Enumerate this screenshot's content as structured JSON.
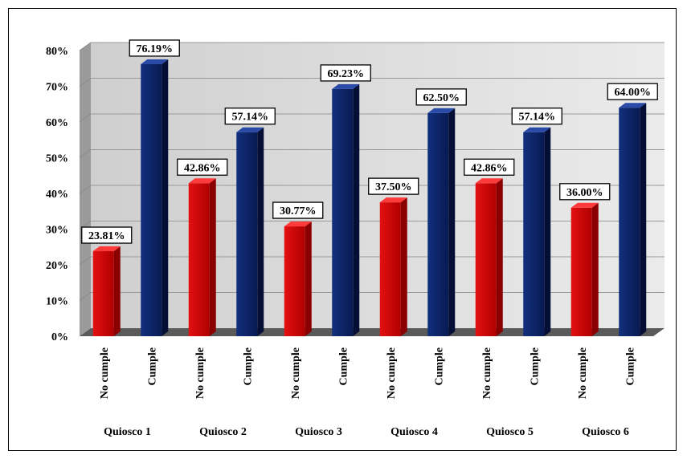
{
  "chart_data": {
    "type": "bar",
    "title": "",
    "xlabel": "",
    "ylabel": "",
    "ylim": [
      0,
      80
    ],
    "y_ticks": [
      "0%",
      "10%",
      "20%",
      "30%",
      "40%",
      "50%",
      "60%",
      "70%",
      "80%"
    ],
    "grid": true,
    "legend": "none",
    "style": "3d",
    "groups": [
      "Quiosco 1",
      "Quiosco 2",
      "Quiosco 3",
      "Quiosco 4",
      "Quiosco 5",
      "Quiosco 6"
    ],
    "bars": [
      {
        "group": "Quiosco 1",
        "category": "No cumple",
        "value": 23.81,
        "label": "23.81%",
        "color": "#cc0000"
      },
      {
        "group": "Quiosco 1",
        "category": "Cumple",
        "value": 76.19,
        "label": "76.19%",
        "color": "#0c2266"
      },
      {
        "group": "Quiosco 2",
        "category": "No cumple",
        "value": 42.86,
        "label": "42.86%",
        "color": "#cc0000"
      },
      {
        "group": "Quiosco 2",
        "category": "Cumple",
        "value": 57.14,
        "label": "57.14%",
        "color": "#0c2266"
      },
      {
        "group": "Quiosco 3",
        "category": "No cumple",
        "value": 30.77,
        "label": "30.77%",
        "color": "#cc0000"
      },
      {
        "group": "Quiosco 3",
        "category": "Cumple",
        "value": 69.23,
        "label": "69.23%",
        "color": "#0c2266"
      },
      {
        "group": "Quiosco 4",
        "category": "No cumple",
        "value": 37.5,
        "label": "37.50%",
        "color": "#cc0000"
      },
      {
        "group": "Quiosco 4",
        "category": "Cumple",
        "value": 62.5,
        "label": "62.50%",
        "color": "#0c2266"
      },
      {
        "group": "Quiosco 5",
        "category": "No cumple",
        "value": 42.86,
        "label": "42.86%",
        "color": "#cc0000"
      },
      {
        "group": "Quiosco 5",
        "category": "Cumple",
        "value": 57.14,
        "label": "57.14%",
        "color": "#0c2266"
      },
      {
        "group": "Quiosco 6",
        "category": "No cumple",
        "value": 36.0,
        "label": "36.00%",
        "color": "#cc0000"
      },
      {
        "group": "Quiosco 6",
        "category": "Cumple",
        "value": 64.0,
        "label": "64.00%",
        "color": "#0c2266"
      }
    ]
  }
}
